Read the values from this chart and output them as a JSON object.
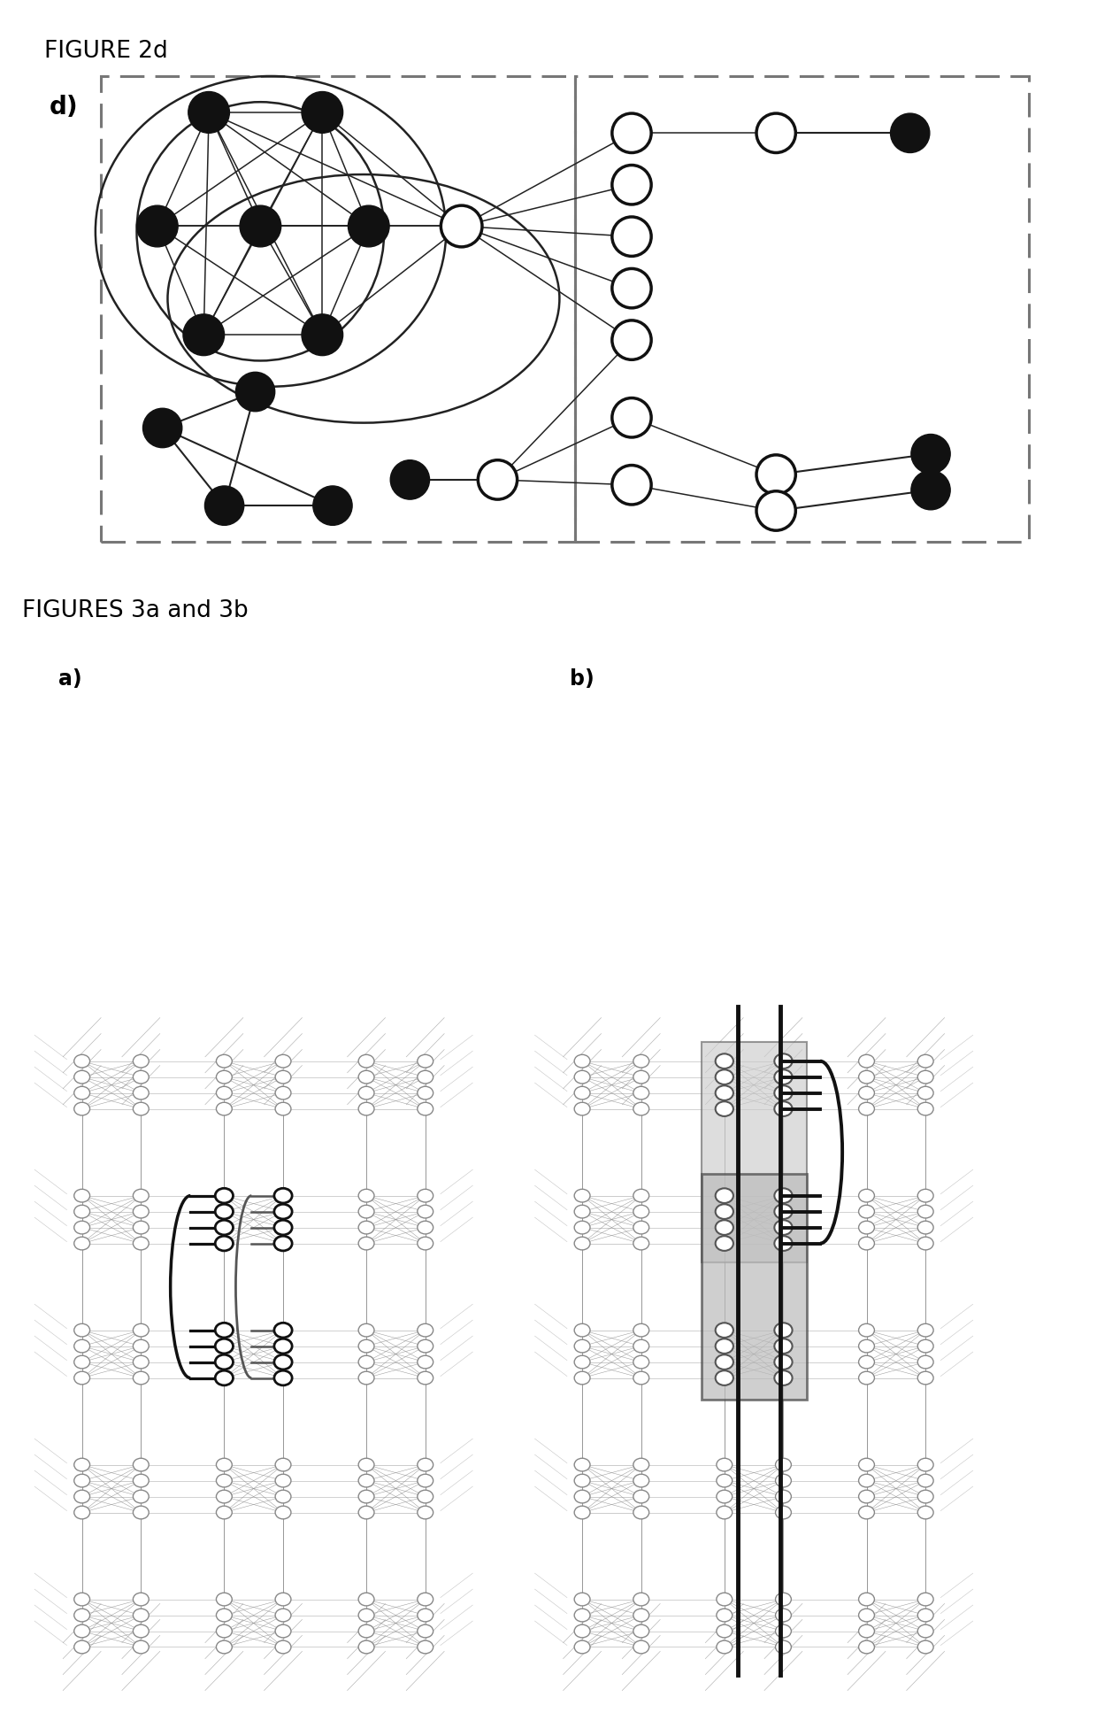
{
  "fig2d_title": "FIGURE 2d",
  "fig3ab_title": "FIGURES 3a and 3b",
  "label_d": "d)",
  "label_a": "a)",
  "label_b": "b)",
  "bg_color": "#ffffff",
  "node_black": "#111111",
  "node_white": "#ffffff",
  "node_edge": "#111111",
  "dashed_color": "#777777",
  "line_color": "#222222",
  "grid_color": "#888888",
  "grid_light": "#aaaaaa"
}
